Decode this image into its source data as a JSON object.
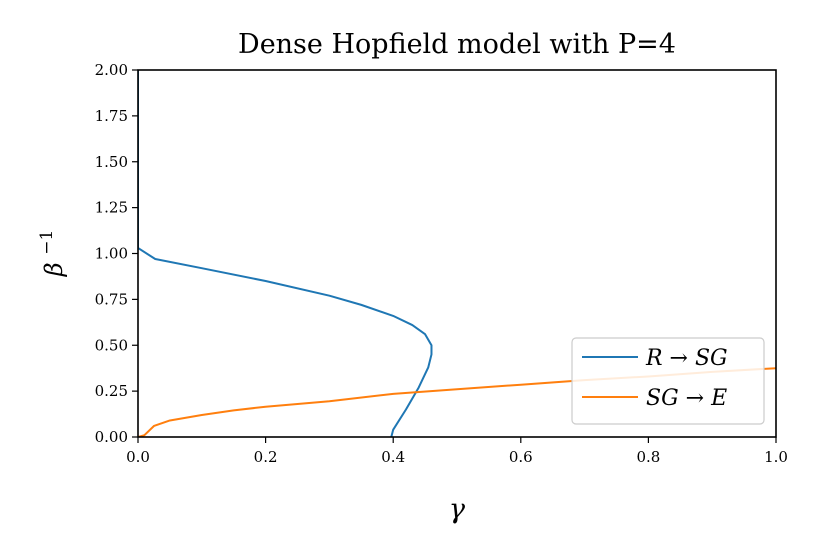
{
  "chart_data": {
    "type": "line",
    "title": "Dense Hopfield model with P=4",
    "xlabel": "γ",
    "ylabel": "β",
    "ylabel_sup": "−1",
    "xlim": [
      0.0,
      1.0
    ],
    "ylim": [
      0.0,
      2.0
    ],
    "xticks": [
      "0.0",
      "0.2",
      "0.4",
      "0.6",
      "0.8",
      "1.0"
    ],
    "yticks": [
      "0.00",
      "0.25",
      "0.50",
      "0.75",
      "1.00",
      "1.25",
      "1.50",
      "1.75",
      "2.00"
    ],
    "grid": false,
    "legend_position": "lower-right",
    "series": [
      {
        "name": "R → SG",
        "color": "#1f77b4",
        "x": [
          0.0,
          0.0,
          0.027,
          0.1,
          0.2,
          0.3,
          0.35,
          0.4,
          0.43,
          0.45,
          0.46,
          0.46,
          0.455,
          0.44,
          0.42,
          0.4,
          0.397
        ],
        "y": [
          2.0,
          1.03,
          0.97,
          0.92,
          0.85,
          0.77,
          0.72,
          0.66,
          0.61,
          0.56,
          0.5,
          0.45,
          0.38,
          0.27,
          0.15,
          0.04,
          0.0
        ]
      },
      {
        "name": "SG → E",
        "color": "#ff7f0e",
        "x": [
          0.0,
          0.01,
          0.025,
          0.05,
          0.1,
          0.15,
          0.2,
          0.3,
          0.4,
          0.5,
          0.6,
          0.7,
          0.8,
          0.9,
          1.0
        ],
        "y": [
          0.0,
          0.01,
          0.06,
          0.09,
          0.12,
          0.145,
          0.165,
          0.195,
          0.235,
          0.26,
          0.285,
          0.31,
          0.33,
          0.355,
          0.375
        ]
      }
    ]
  }
}
